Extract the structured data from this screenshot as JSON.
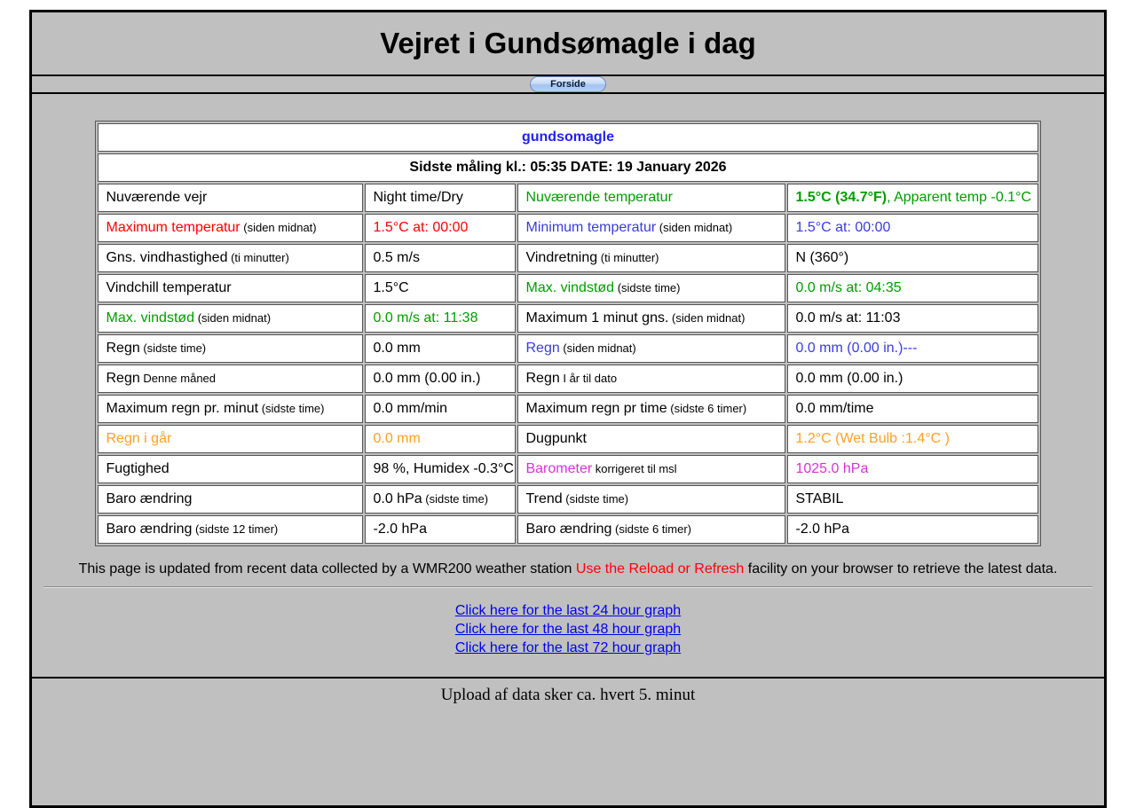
{
  "page": {
    "title": "Vejret i Gundsømagle i dag",
    "nav_button_label": "Forside"
  },
  "colors": {
    "black": "#000000",
    "red": "#ff0000",
    "green": "#009c00",
    "blue": "#3b3bde",
    "orange": "#ffa022",
    "magenta": "#d633d6",
    "station": "#2222ee",
    "link": "#0000ee"
  },
  "table": {
    "station_name": "gundsomagle",
    "last_reading": "Sidste måling kl.: 05:35 DATE: 19 January 2026",
    "rows": [
      [
        {
          "t": "label",
          "text": "Nuværende vejr",
          "color": "black"
        },
        {
          "t": "value",
          "text": "Night time/Dry",
          "color": "black"
        },
        {
          "t": "label",
          "text": "Nuværende temperatur",
          "color": "green"
        },
        {
          "t": "value",
          "bold": "1.5°C (34.7°F)",
          "text": ", Apparent temp -0.1°C",
          "color": "green"
        }
      ],
      [
        {
          "t": "label",
          "text": "Maximum temperatur",
          "sub": "(siden midnat)",
          "color": "red"
        },
        {
          "t": "value",
          "text": "1.5°C at: 00:00",
          "color": "red"
        },
        {
          "t": "label",
          "text": "Minimum temperatur",
          "sub": "(siden midnat)",
          "color": "blue"
        },
        {
          "t": "value",
          "text": "1.5°C at: 00:00",
          "color": "blue"
        }
      ],
      [
        {
          "t": "label",
          "text": "Gns. vindhastighed",
          "sub": "(ti minutter)",
          "color": "black"
        },
        {
          "t": "value",
          "text": "0.5 m/s",
          "color": "black"
        },
        {
          "t": "label",
          "text": "Vindretning",
          "sub": "(ti minutter)",
          "color": "black"
        },
        {
          "t": "value",
          "text": "N (360°)",
          "color": "black"
        }
      ],
      [
        {
          "t": "label",
          "text": "Vindchill temperatur",
          "color": "black"
        },
        {
          "t": "value",
          "text": "1.5°C",
          "color": "black"
        },
        {
          "t": "label",
          "text": "Max. vindstød",
          "sub": "(sidste time)",
          "color": "green"
        },
        {
          "t": "value",
          "text": "0.0 m/s at: 04:35",
          "color": "green"
        }
      ],
      [
        {
          "t": "label",
          "text": "Max. vindstød",
          "sub": "(siden midnat)",
          "color": "green"
        },
        {
          "t": "value",
          "text": "0.0 m/s at: 11:38",
          "color": "green"
        },
        {
          "t": "label",
          "text": "Maximum 1 minut gns.",
          "sub": "(siden midnat)",
          "color": "black"
        },
        {
          "t": "value",
          "text": "0.0 m/s at: 11:03",
          "color": "black"
        }
      ],
      [
        {
          "t": "label",
          "text": "Regn",
          "sub": "(sidste time)",
          "color": "black"
        },
        {
          "t": "value",
          "text": "0.0 mm",
          "color": "black"
        },
        {
          "t": "label",
          "text": "Regn",
          "sub": "(siden midnat)",
          "color": "blue"
        },
        {
          "t": "value",
          "text": "0.0 mm (0.00 in.)---",
          "color": "blue"
        }
      ],
      [
        {
          "t": "label",
          "text": "Regn",
          "sub": "Denne måned",
          "color": "black"
        },
        {
          "t": "value",
          "text": "0.0 mm (0.00 in.)",
          "color": "black"
        },
        {
          "t": "label",
          "text": "Regn",
          "sub": "I år til dato",
          "color": "black"
        },
        {
          "t": "value",
          "text": "0.0 mm (0.00 in.)",
          "color": "black"
        }
      ],
      [
        {
          "t": "label",
          "text": "Maximum regn pr. minut",
          "sub": "(sidste time)",
          "color": "black"
        },
        {
          "t": "value",
          "text": "0.0 mm/min",
          "color": "black"
        },
        {
          "t": "label",
          "text": "Maximum regn pr time",
          "sub": "(sidste 6 timer)",
          "color": "black"
        },
        {
          "t": "value",
          "text": "0.0 mm/time",
          "color": "black"
        }
      ],
      [
        {
          "t": "label",
          "text": "Regn i går",
          "color": "orange"
        },
        {
          "t": "value",
          "text": "0.0 mm",
          "color": "orange"
        },
        {
          "t": "label",
          "text": "Dugpunkt",
          "color": "black"
        },
        {
          "t": "value",
          "text": "1.2°C (Wet Bulb :1.4°C )",
          "color": "orange"
        }
      ],
      [
        {
          "t": "label",
          "text": "Fugtighed",
          "color": "black"
        },
        {
          "t": "value",
          "text": "98 %, Humidex -0.3°C",
          "color": "black"
        },
        {
          "t": "label",
          "text": "Barometer",
          "sub": "korrigeret til msl",
          "color": "magenta"
        },
        {
          "t": "value",
          "text": "1025.0 hPa",
          "color": "magenta"
        }
      ],
      [
        {
          "t": "label",
          "text": "Baro ændring",
          "color": "black"
        },
        {
          "t": "value",
          "text": "0.0 hPa",
          "sub": "(sidste time)",
          "color": "black"
        },
        {
          "t": "label",
          "text": "Trend",
          "sub": "(sidste time)",
          "color": "black"
        },
        {
          "t": "value",
          "text": "STABIL",
          "color": "black"
        }
      ],
      [
        {
          "t": "label",
          "text": "Baro ændring",
          "sub": "(sidste 12 timer)",
          "color": "black"
        },
        {
          "t": "value",
          "text": "-2.0 hPa",
          "color": "black"
        },
        {
          "t": "label",
          "text": "Baro ændring",
          "sub": "(sidste 6 timer)",
          "color": "black"
        },
        {
          "t": "value",
          "text": "-2.0 hPa",
          "color": "black"
        }
      ]
    ]
  },
  "footer": {
    "update_note_prefix": "This page is updated from recent data collected by a WMR200 weather station ",
    "update_note_highlight": "Use the Reload or Refresh",
    "update_note_suffix": " facility on your browser to retrieve the latest data.",
    "links": [
      "Click here for the last 24 hour graph",
      "Click here for the last 48 hour graph",
      "Click here for the last 72 hour graph"
    ],
    "bottom_note": "Upload af data sker ca. hvert 5. minut"
  }
}
